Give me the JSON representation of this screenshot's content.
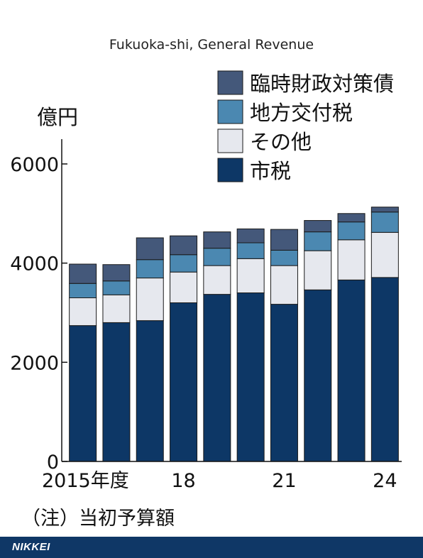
{
  "chart_data": {
    "type": "bar",
    "stacked": true,
    "title": "Fukuoka-shi, General Revenue",
    "ylabel": "億円",
    "xlabel": "",
    "ylim": [
      0,
      6500
    ],
    "yticks": [
      0,
      2000,
      4000,
      6000
    ],
    "categories": [
      "2015",
      "2016",
      "2017",
      "2018",
      "2019",
      "2020",
      "2021",
      "2022",
      "2023",
      "2024"
    ],
    "xtick_labels": [
      "2015年度",
      "",
      "",
      "18",
      "",
      "",
      "21",
      "",
      "",
      "24"
    ],
    "series": [
      {
        "name": "市税",
        "color": "#0d3766",
        "values": [
          2740,
          2800,
          2840,
          3200,
          3370,
          3400,
          3170,
          3460,
          3660,
          3710
        ]
      },
      {
        "name": "その他",
        "color": "#e6e8ee",
        "values": [
          560,
          560,
          860,
          620,
          580,
          690,
          780,
          790,
          810,
          910
        ]
      },
      {
        "name": "地方交付税",
        "color": "#4b88b1",
        "values": [
          290,
          280,
          370,
          350,
          350,
          320,
          310,
          380,
          360,
          410
        ]
      },
      {
        "name": "臨時財政対策債",
        "color": "#44587a",
        "values": [
          390,
          330,
          440,
          380,
          330,
          280,
          420,
          230,
          170,
          100
        ]
      }
    ],
    "legend_position": "top-right",
    "grid": false
  },
  "note": "（注）当初予算額",
  "footer": {
    "brand": "NIKKEI"
  }
}
